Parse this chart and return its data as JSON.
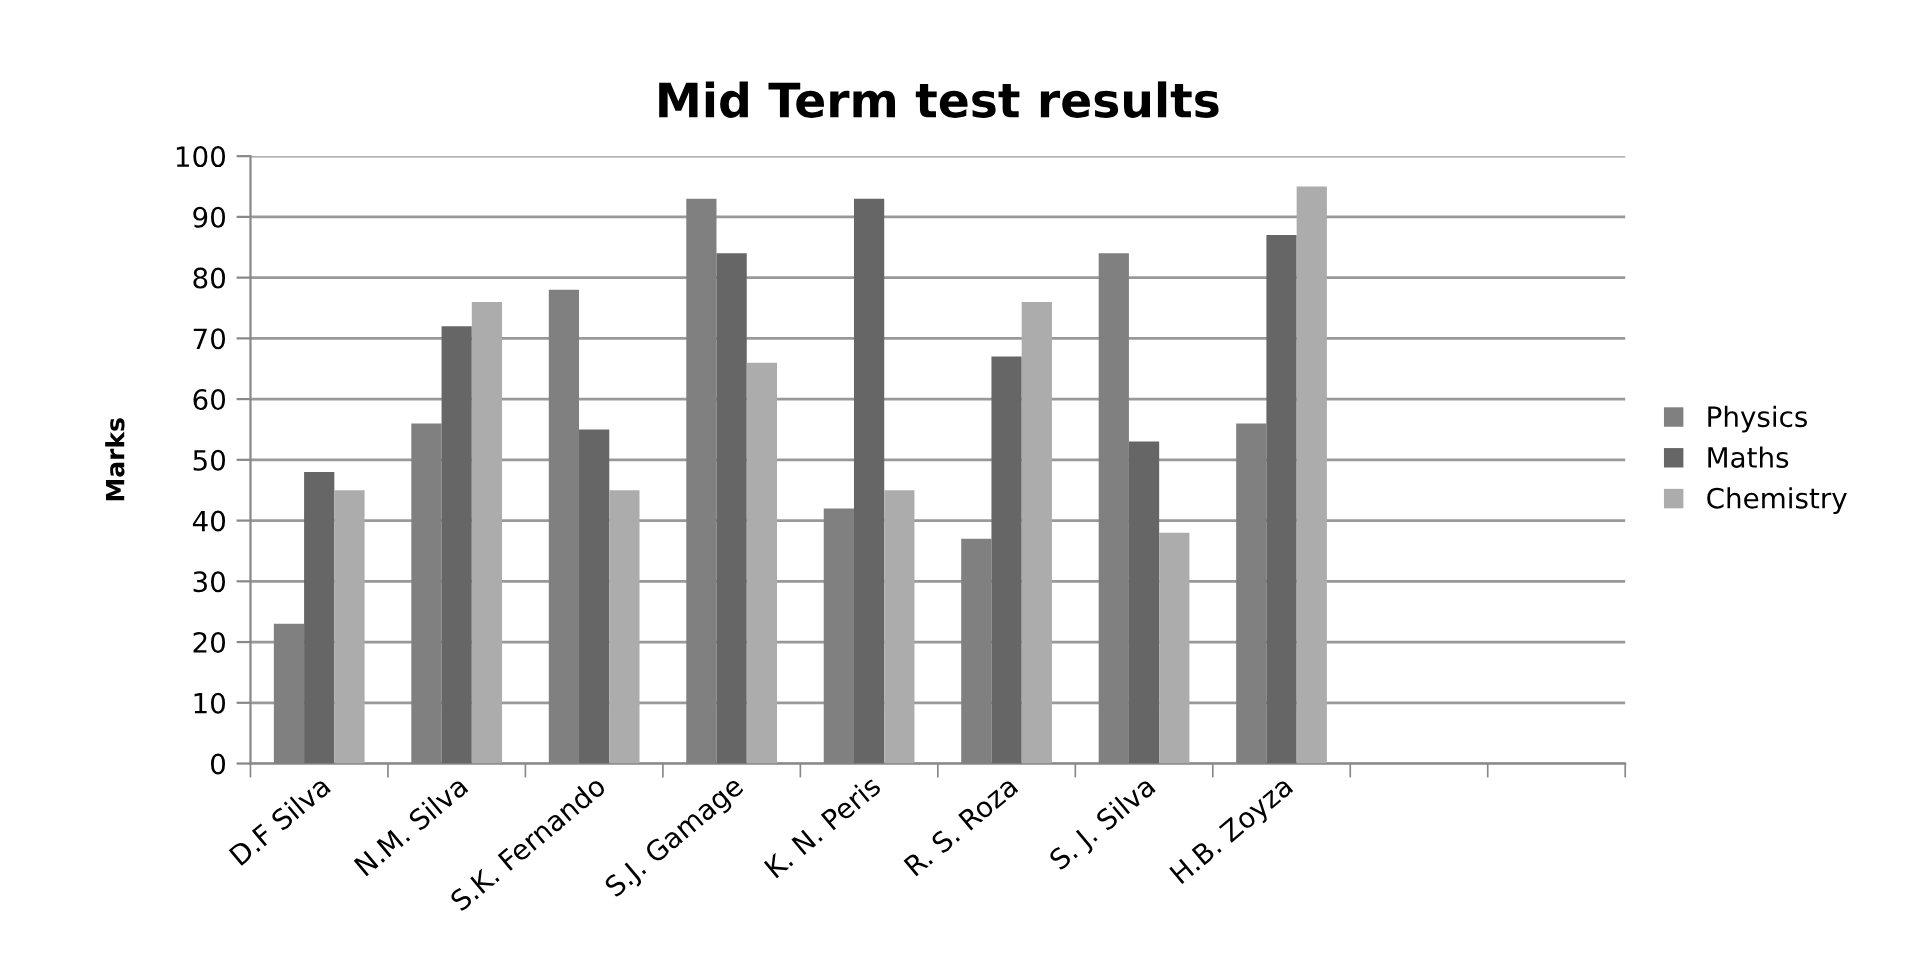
{
  "chart_data": {
    "type": "bar",
    "title": "Mid Term test results",
    "ylabel": "Marks",
    "categories": [
      "D.F Silva",
      "N.M. Silva",
      "S.K. Fernando",
      "S.J. Gamage",
      "K. N. Peris",
      "R. S. Roza",
      "S. J. Silva",
      "H.B. Zoyza",
      null,
      null
    ],
    "series": [
      {
        "name": "Physics",
        "color": "#808080",
        "values": [
          23,
          56,
          78,
          93,
          42,
          37,
          84,
          56,
          null,
          null
        ]
      },
      {
        "name": "Maths",
        "color": "#666666",
        "values": [
          48,
          72,
          55,
          84,
          93,
          67,
          53,
          87,
          null,
          null
        ]
      },
      {
        "name": "Chemistry",
        "color": "#acacac",
        "values": [
          45,
          76,
          45,
          66,
          45,
          76,
          38,
          95,
          null,
          null
        ]
      }
    ],
    "ylim": [
      0,
      100
    ],
    "yticks": [
      0,
      10,
      20,
      30,
      40,
      50,
      60,
      70,
      80,
      90,
      100
    ],
    "grid": "y",
    "legend": "right"
  }
}
